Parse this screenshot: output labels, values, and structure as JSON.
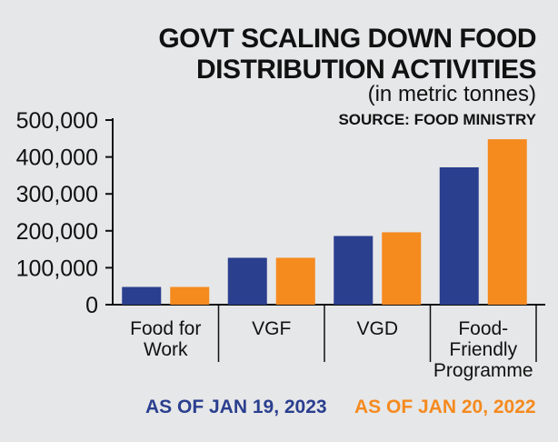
{
  "chart_data": {
    "type": "bar",
    "title_lines": [
      "GOVT SCALING DOWN FOOD",
      "DISTRIBUTION ACTIVITIES"
    ],
    "subtitle": "(in metric tonnes)",
    "source": "SOURCE: FOOD MINISTRY",
    "categories": [
      [
        "Food for",
        "Work"
      ],
      [
        "VGF"
      ],
      [
        "VGD"
      ],
      [
        "Food-",
        "Friendly",
        "Programme"
      ]
    ],
    "series": [
      {
        "name": "AS OF JAN 19, 2023",
        "color": "#2b3f8f",
        "values": [
          48000,
          127000,
          186000,
          372000
        ]
      },
      {
        "name": "AS OF JAN 20, 2022",
        "color": "#f58a1f",
        "values": [
          48000,
          127000,
          196000,
          448000
        ]
      }
    ],
    "yticks": [
      "0",
      "100,000",
      "200,000",
      "300,000",
      "400,000",
      "500,000"
    ],
    "ytick_values": [
      0,
      100000,
      200000,
      300000,
      400000,
      500000
    ],
    "ylim": [
      0,
      500000
    ]
  }
}
